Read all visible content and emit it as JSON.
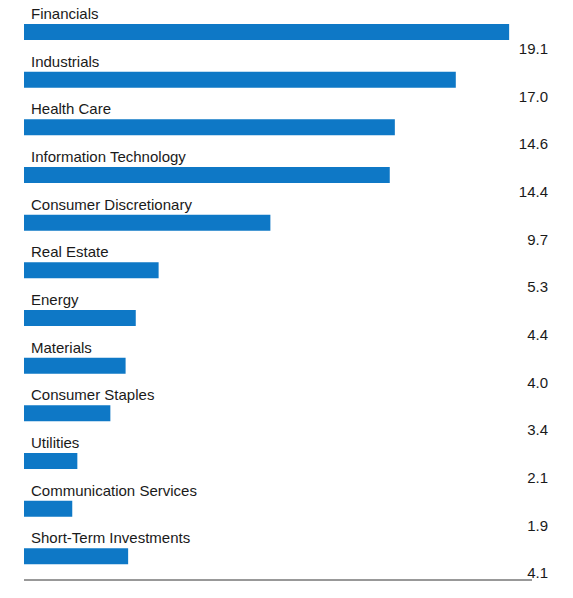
{
  "chart_data": {
    "type": "bar",
    "orientation": "horizontal",
    "categories": [
      "Financials",
      "Industrials",
      "Health Care",
      "Information Technology",
      "Consumer Discretionary",
      "Real Estate",
      "Energy",
      "Materials",
      "Consumer Staples",
      "Utilities",
      "Communication Services",
      "Short-Term Investments"
    ],
    "values": [
      19.1,
      17.0,
      14.6,
      14.4,
      9.7,
      5.3,
      4.4,
      4.0,
      3.4,
      2.1,
      1.9,
      4.1
    ],
    "value_labels": [
      "19.1",
      "17.0",
      "14.6",
      "14.4",
      "9.7",
      "5.3",
      "4.4",
      "4.0",
      "3.4",
      "2.1",
      "1.9",
      "4.1"
    ],
    "color": "#0e78c6",
    "xlim": [
      0,
      20
    ],
    "data_labels": true,
    "tick_labels": false,
    "grid": false
  }
}
